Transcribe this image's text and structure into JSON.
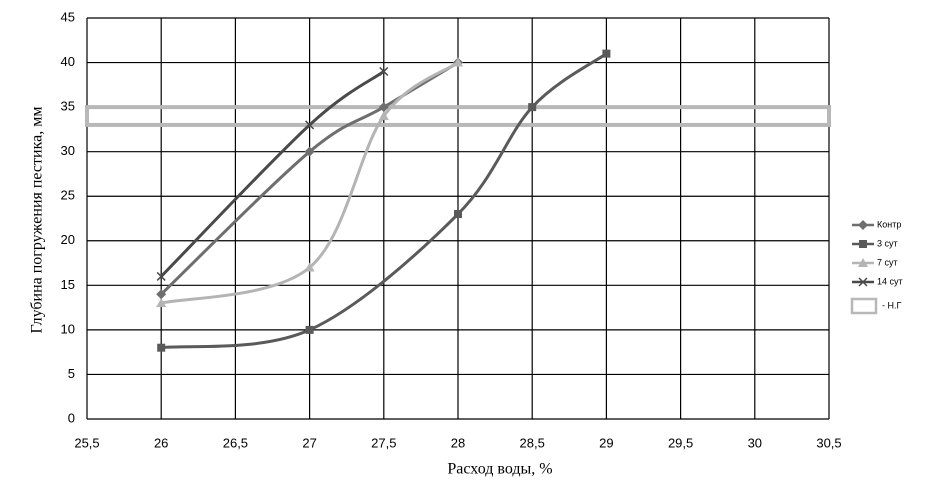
{
  "chart_data": {
    "type": "line",
    "x_label": "Расход воды, %",
    "y_label": "Глубина погружения пестика, мм",
    "xlim": [
      25.5,
      30.5
    ],
    "xticks": [
      {
        "value": 25.5,
        "label": "25,5"
      },
      26,
      {
        "value": 26.5,
        "label": "26,5"
      },
      27,
      {
        "value": 27.5,
        "label": "27,5"
      },
      28,
      {
        "value": 28.5,
        "label": "28,5"
      },
      29,
      {
        "value": 29.5,
        "label": "29,5"
      },
      30,
      {
        "value": 30.5,
        "label": "30,5"
      }
    ],
    "ylim": [
      0,
      45
    ],
    "yticks": [
      0,
      5,
      10,
      15,
      20,
      25,
      30,
      35,
      40,
      45
    ],
    "grid": true,
    "legend": "right",
    "series": [
      {
        "name": "Контр",
        "color": "#6e6e6e",
        "marker": "diamond",
        "x": [
          26,
          27,
          27.5,
          28
        ],
        "values": [
          14,
          30,
          35,
          40
        ]
      },
      {
        "name": "3 сут",
        "color": "#5a5a5a",
        "marker": "square",
        "x": [
          26,
          27,
          28,
          28.5,
          29
        ],
        "values": [
          8,
          10,
          23,
          35,
          41
        ]
      },
      {
        "name": "7 сут",
        "color": "#b4b4b4",
        "marker": "triangle",
        "x": [
          26,
          27,
          27.5,
          28
        ],
        "values": [
          13,
          17,
          34,
          40
        ]
      },
      {
        "name": "14 сут",
        "color": "#4a4a4a",
        "marker": "cross",
        "x": [
          26,
          27,
          27.5
        ],
        "values": [
          16,
          33,
          39
        ]
      }
    ],
    "band": {
      "name": "- Н.Г",
      "color": "#b8b8b8",
      "range": [
        33,
        35
      ]
    }
  }
}
